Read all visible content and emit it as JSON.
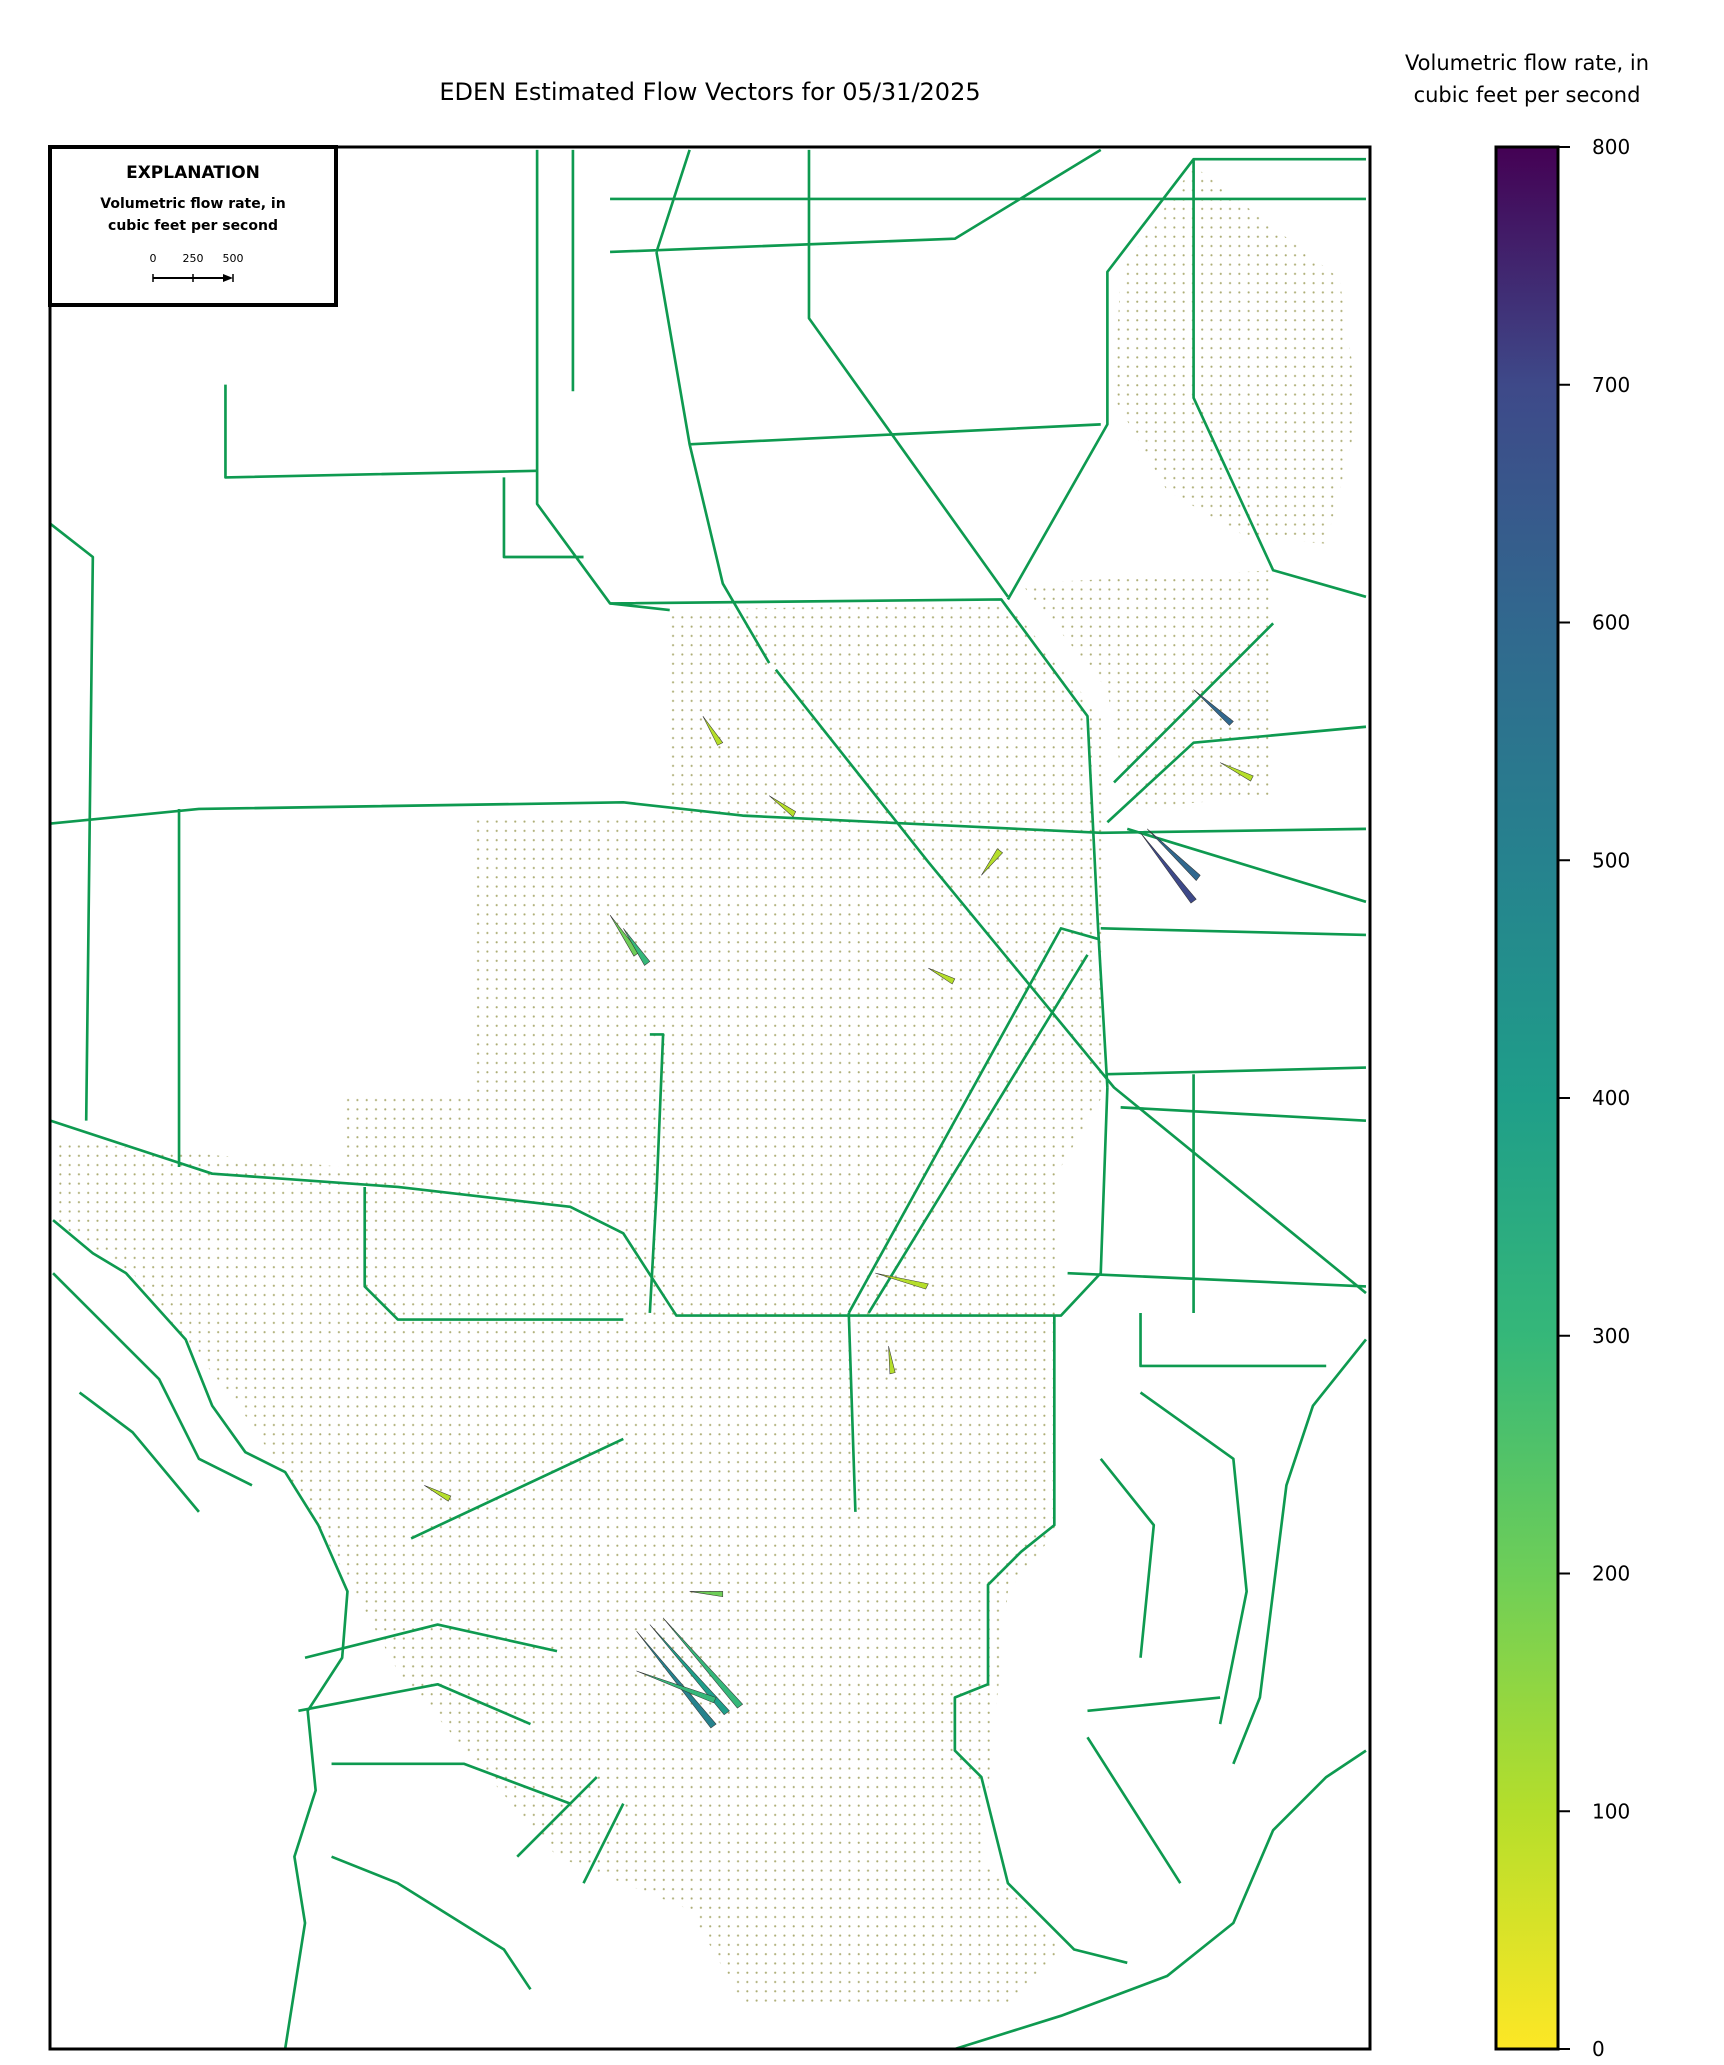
{
  "title": "EDEN Estimated Flow Vectors for 05/31/2025",
  "colorbar": {
    "label_lines": [
      "Volumetric flow rate, in",
      "cubic feet per second"
    ],
    "lim": [
      0,
      800
    ],
    "ticks": [
      0,
      100,
      200,
      300,
      400,
      500,
      600,
      700,
      800
    ],
    "colormap": "viridis_r"
  },
  "explanation": {
    "title": "EXPLANATION",
    "label_lines": [
      "Volumetric flow rate, in",
      "cubic feet per second"
    ],
    "scale_ticks": [
      0,
      250,
      500
    ]
  }
}
